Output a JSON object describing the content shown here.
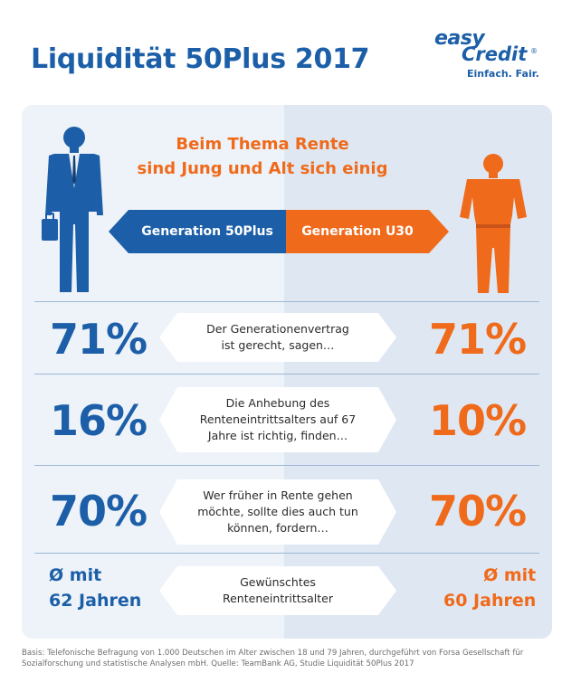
{
  "header": {
    "title": "Liquidität 50Plus 2017",
    "logo": {
      "brand_line1": "easy",
      "brand_line2": "Credit",
      "registered": "®",
      "slogan": "Einfach. Fair."
    }
  },
  "headline": {
    "line1": "Beim Thema Rente",
    "line2": "sind Jung und Alt sich einig"
  },
  "generations": {
    "left": "Generation 50Plus",
    "right": "Generation U30"
  },
  "rows": [
    {
      "left": "71%",
      "right": "71%",
      "statement": [
        "Der Generationenvertrag",
        "ist gerecht, sagen…"
      ]
    },
    {
      "left": "16%",
      "right": "10%",
      "statement": [
        "Die Anhebung des",
        "Renteneintrittsalters auf 67",
        "Jahre ist richtig, finden…"
      ]
    },
    {
      "left": "70%",
      "right": "70%",
      "statement": [
        "Wer früher in Rente gehen",
        "möchte, sollte dies auch tun",
        "können, fordern…"
      ]
    },
    {
      "left": [
        "Ø mit",
        "62 Jahren"
      ],
      "right": [
        "Ø mit",
        "60 Jahren"
      ],
      "statement": [
        "Gewünschtes",
        "Renteneintrittsalter"
      ]
    }
  ],
  "footnote": {
    "line1": "Basis: Telefonische Befragung von 1.000 Deutschen im Alter zwischen 18 und 79 Jahren, durchgeführt von Forsa Gesellschaft für",
    "line2": "Sozialforschung und statistische Analysen mbH. Quelle: TeamBank AG, Studie Liquidität 50Plus 2017"
  },
  "icons": {
    "left_figure": "businessman-icon",
    "right_figure": "young-person-icon"
  },
  "colors": {
    "blue": "#1c5fa8",
    "orange": "#ef6a1b",
    "panel_left": "#eef3f9",
    "panel_right": "#dfe8f2"
  }
}
